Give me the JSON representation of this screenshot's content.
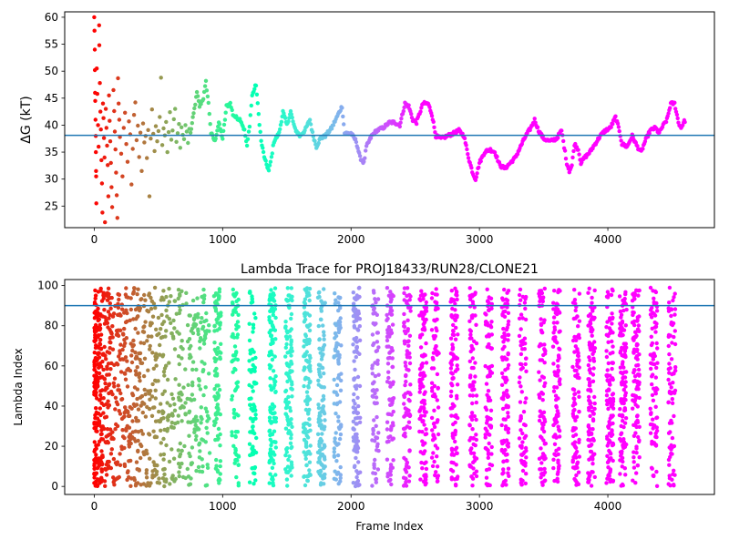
{
  "chart_data": [
    {
      "type": "scatter",
      "title": "",
      "xlabel": "",
      "ylabel": "ΔG (kT)",
      "xlim": [
        -230,
        4830
      ],
      "ylim": [
        21,
        61
      ],
      "xticks": [
        0,
        1000,
        2000,
        3000,
        4000
      ],
      "yticks": [
        25,
        30,
        35,
        40,
        45,
        50,
        55,
        60
      ],
      "reference_line": {
        "y": 38.1,
        "color": "#1f77b4"
      },
      "color_map": "rainbow, colored by frame index (red at early frames to violet at late frames)",
      "total_frames": 4600,
      "early_phase": {
        "description": "scattered points before frame ~750",
        "points": [
          [
            0,
            60.0
          ],
          [
            2,
            57.5
          ],
          [
            4,
            54.0
          ],
          [
            5,
            50.2
          ],
          [
            6,
            46.0
          ],
          [
            8,
            44.5
          ],
          [
            10,
            41.0
          ],
          [
            12,
            38.0
          ],
          [
            13,
            35.0
          ],
          [
            14,
            31.5
          ],
          [
            15,
            30.5
          ],
          [
            16,
            25.5
          ],
          [
            20,
            50.5
          ],
          [
            24,
            45.8
          ],
          [
            30,
            40.0
          ],
          [
            34,
            36.0
          ],
          [
            38,
            58.5
          ],
          [
            40,
            54.8
          ],
          [
            44,
            47.8
          ],
          [
            48,
            42.5
          ],
          [
            52,
            39.2
          ],
          [
            56,
            33.5
          ],
          [
            60,
            29.2
          ],
          [
            64,
            23.8
          ],
          [
            68,
            44.0
          ],
          [
            72,
            41.3
          ],
          [
            76,
            37.6
          ],
          [
            80,
            34.0
          ],
          [
            84,
            22.0
          ],
          [
            90,
            43.0
          ],
          [
            95,
            39.5
          ],
          [
            100,
            36.2
          ],
          [
            105,
            32.6
          ],
          [
            110,
            26.8
          ],
          [
            115,
            45.5
          ],
          [
            120,
            40.8
          ],
          [
            125,
            37.0
          ],
          [
            130,
            33.0
          ],
          [
            135,
            28.5
          ],
          [
            140,
            24.8
          ],
          [
            150,
            46.5
          ],
          [
            155,
            42.6
          ],
          [
            160,
            38.8
          ],
          [
            165,
            35.5
          ],
          [
            170,
            31.2
          ],
          [
            175,
            27.0
          ],
          [
            180,
            22.8
          ],
          [
            185,
            48.7
          ],
          [
            190,
            44.0
          ],
          [
            195,
            41.0
          ],
          [
            200,
            37.8
          ],
          [
            210,
            34.7
          ],
          [
            220,
            30.5
          ],
          [
            230,
            39.5
          ],
          [
            240,
            42.3
          ],
          [
            250,
            36.5
          ],
          [
            260,
            33.2
          ],
          [
            270,
            40.7
          ],
          [
            280,
            38.3
          ],
          [
            290,
            29.0
          ],
          [
            300,
            35.6
          ],
          [
            310,
            41.9
          ],
          [
            320,
            44.2
          ],
          [
            330,
            37.2
          ],
          [
            340,
            39.9
          ],
          [
            350,
            34.1
          ],
          [
            360,
            38.6
          ],
          [
            370,
            31.5
          ],
          [
            380,
            40.3
          ],
          [
            390,
            36.8
          ],
          [
            400,
            38.0
          ],
          [
            410,
            33.9
          ],
          [
            420,
            39.1
          ],
          [
            430,
            26.8
          ],
          [
            440,
            37.5
          ],
          [
            450,
            42.9
          ],
          [
            460,
            38.4
          ],
          [
            470,
            35.2
          ],
          [
            480,
            39.8
          ],
          [
            490,
            37.0
          ],
          [
            500,
            38.9
          ],
          [
            510,
            41.5
          ],
          [
            520,
            48.8
          ],
          [
            530,
            36.3
          ],
          [
            540,
            39.4
          ],
          [
            550,
            38.1
          ],
          [
            560,
            40.6
          ],
          [
            570,
            35.0
          ],
          [
            580,
            38.7
          ],
          [
            590,
            42.4
          ],
          [
            600,
            37.3
          ],
          [
            610,
            39.0
          ],
          [
            620,
            41.1
          ],
          [
            630,
            43.0
          ],
          [
            640,
            36.9
          ],
          [
            650,
            38.5
          ],
          [
            660,
            40.2
          ],
          [
            670,
            35.8
          ],
          [
            680,
            39.6
          ],
          [
            690,
            38.2
          ],
          [
            700,
            37.4
          ],
          [
            710,
            40.0
          ],
          [
            720,
            38.8
          ],
          [
            730,
            36.7
          ],
          [
            740,
            39.3
          ]
        ]
      },
      "trace": {
        "description": "dense continuous trace after frame ~750",
        "points": [
          [
            750,
            38.5
          ],
          [
            780,
            43.0
          ],
          [
            800,
            46.0
          ],
          [
            820,
            43.5
          ],
          [
            850,
            45.0
          ],
          [
            870,
            48.0
          ],
          [
            890,
            44.0
          ],
          [
            910,
            38.5
          ],
          [
            940,
            37.0
          ],
          [
            970,
            40.5
          ],
          [
            1000,
            37.5
          ],
          [
            1030,
            43.5
          ],
          [
            1060,
            44.0
          ],
          [
            1080,
            42.0
          ],
          [
            1100,
            41.5
          ],
          [
            1140,
            41.0
          ],
          [
            1170,
            39.0
          ],
          [
            1190,
            36.0
          ],
          [
            1210,
            40.0
          ],
          [
            1230,
            45.5
          ],
          [
            1260,
            47.5
          ],
          [
            1280,
            42.0
          ],
          [
            1300,
            37.0
          ],
          [
            1330,
            33.5
          ],
          [
            1360,
            31.5
          ],
          [
            1380,
            34.0
          ],
          [
            1400,
            37.0
          ],
          [
            1440,
            38.5
          ],
          [
            1470,
            42.5
          ],
          [
            1500,
            40.0
          ],
          [
            1530,
            42.5
          ],
          [
            1560,
            39.5
          ],
          [
            1600,
            38.0
          ],
          [
            1640,
            39.0
          ],
          [
            1680,
            41.0
          ],
          [
            1700,
            38.5
          ],
          [
            1730,
            36.0
          ],
          [
            1760,
            37.5
          ],
          [
            1800,
            38.0
          ],
          [
            1850,
            39.5
          ],
          [
            1900,
            42.0
          ],
          [
            1930,
            43.5
          ],
          [
            1950,
            38.5
          ],
          [
            2000,
            38.5
          ],
          [
            2040,
            37.0
          ],
          [
            2070,
            34.0
          ],
          [
            2100,
            33.0
          ],
          [
            2120,
            36.0
          ],
          [
            2160,
            38.0
          ],
          [
            2200,
            39.0
          ],
          [
            2250,
            39.5
          ],
          [
            2300,
            40.5
          ],
          [
            2340,
            40.5
          ],
          [
            2380,
            40.0
          ],
          [
            2420,
            44.0
          ],
          [
            2450,
            43.5
          ],
          [
            2480,
            41.0
          ],
          [
            2510,
            40.5
          ],
          [
            2560,
            44.0
          ],
          [
            2600,
            44.0
          ],
          [
            2630,
            42.0
          ],
          [
            2660,
            38.0
          ],
          [
            2700,
            37.5
          ],
          [
            2750,
            38.0
          ],
          [
            2800,
            38.5
          ],
          [
            2840,
            39.0
          ],
          [
            2880,
            38.0
          ],
          [
            2920,
            33.5
          ],
          [
            2950,
            31.0
          ],
          [
            2970,
            30.0
          ],
          [
            3000,
            33.0
          ],
          [
            3040,
            35.0
          ],
          [
            3080,
            35.5
          ],
          [
            3120,
            35.0
          ],
          [
            3160,
            32.5
          ],
          [
            3200,
            32.0
          ],
          [
            3240,
            33.0
          ],
          [
            3280,
            34.0
          ],
          [
            3320,
            36.0
          ],
          [
            3360,
            38.0
          ],
          [
            3400,
            39.5
          ],
          [
            3430,
            41.0
          ],
          [
            3460,
            39.0
          ],
          [
            3500,
            37.5
          ],
          [
            3550,
            37.0
          ],
          [
            3600,
            37.5
          ],
          [
            3640,
            39.0
          ],
          [
            3660,
            36.0
          ],
          [
            3680,
            33.0
          ],
          [
            3700,
            31.5
          ],
          [
            3720,
            32.5
          ],
          [
            3740,
            36.5
          ],
          [
            3770,
            35.5
          ],
          [
            3790,
            33.0
          ],
          [
            3820,
            34.0
          ],
          [
            3860,
            35.0
          ],
          [
            3900,
            36.5
          ],
          [
            3940,
            38.0
          ],
          [
            3980,
            39.0
          ],
          [
            4020,
            39.5
          ],
          [
            4060,
            41.5
          ],
          [
            4090,
            39.0
          ],
          [
            4110,
            36.5
          ],
          [
            4150,
            36.0
          ],
          [
            4190,
            38.0
          ],
          [
            4230,
            36.0
          ],
          [
            4260,
            35.0
          ],
          [
            4290,
            37.0
          ],
          [
            4330,
            39.0
          ],
          [
            4370,
            39.5
          ],
          [
            4400,
            38.5
          ],
          [
            4420,
            39.5
          ],
          [
            4460,
            41.0
          ],
          [
            4490,
            44.0
          ],
          [
            4520,
            44.0
          ],
          [
            4550,
            40.5
          ],
          [
            4570,
            39.5
          ],
          [
            4590,
            40.5
          ],
          [
            4605,
            41.0
          ]
        ]
      }
    },
    {
      "type": "scatter",
      "title": "Lambda Trace for PROJ18433/RUN28/CLONE21",
      "xlabel": "Frame Index",
      "ylabel": "Lambda Index",
      "xlim": [
        -230,
        4830
      ],
      "ylim": [
        -4,
        103
      ],
      "xticks": [
        0,
        1000,
        2000,
        3000,
        4000
      ],
      "yticks": [
        0,
        20,
        40,
        60,
        80,
        100
      ],
      "reference_line": {
        "y": 90,
        "color": "#1f77b4"
      },
      "color_map": "rainbow, colored by frame index (red at early frames to violet at late frames)",
      "frame_range": [
        0,
        4600
      ],
      "lambda_range": [
        0,
        99
      ],
      "pattern": "early frames scattered broadly across lambda 0–99; later frames form vertical sweep bands spanning lambda 0–99"
    }
  ]
}
